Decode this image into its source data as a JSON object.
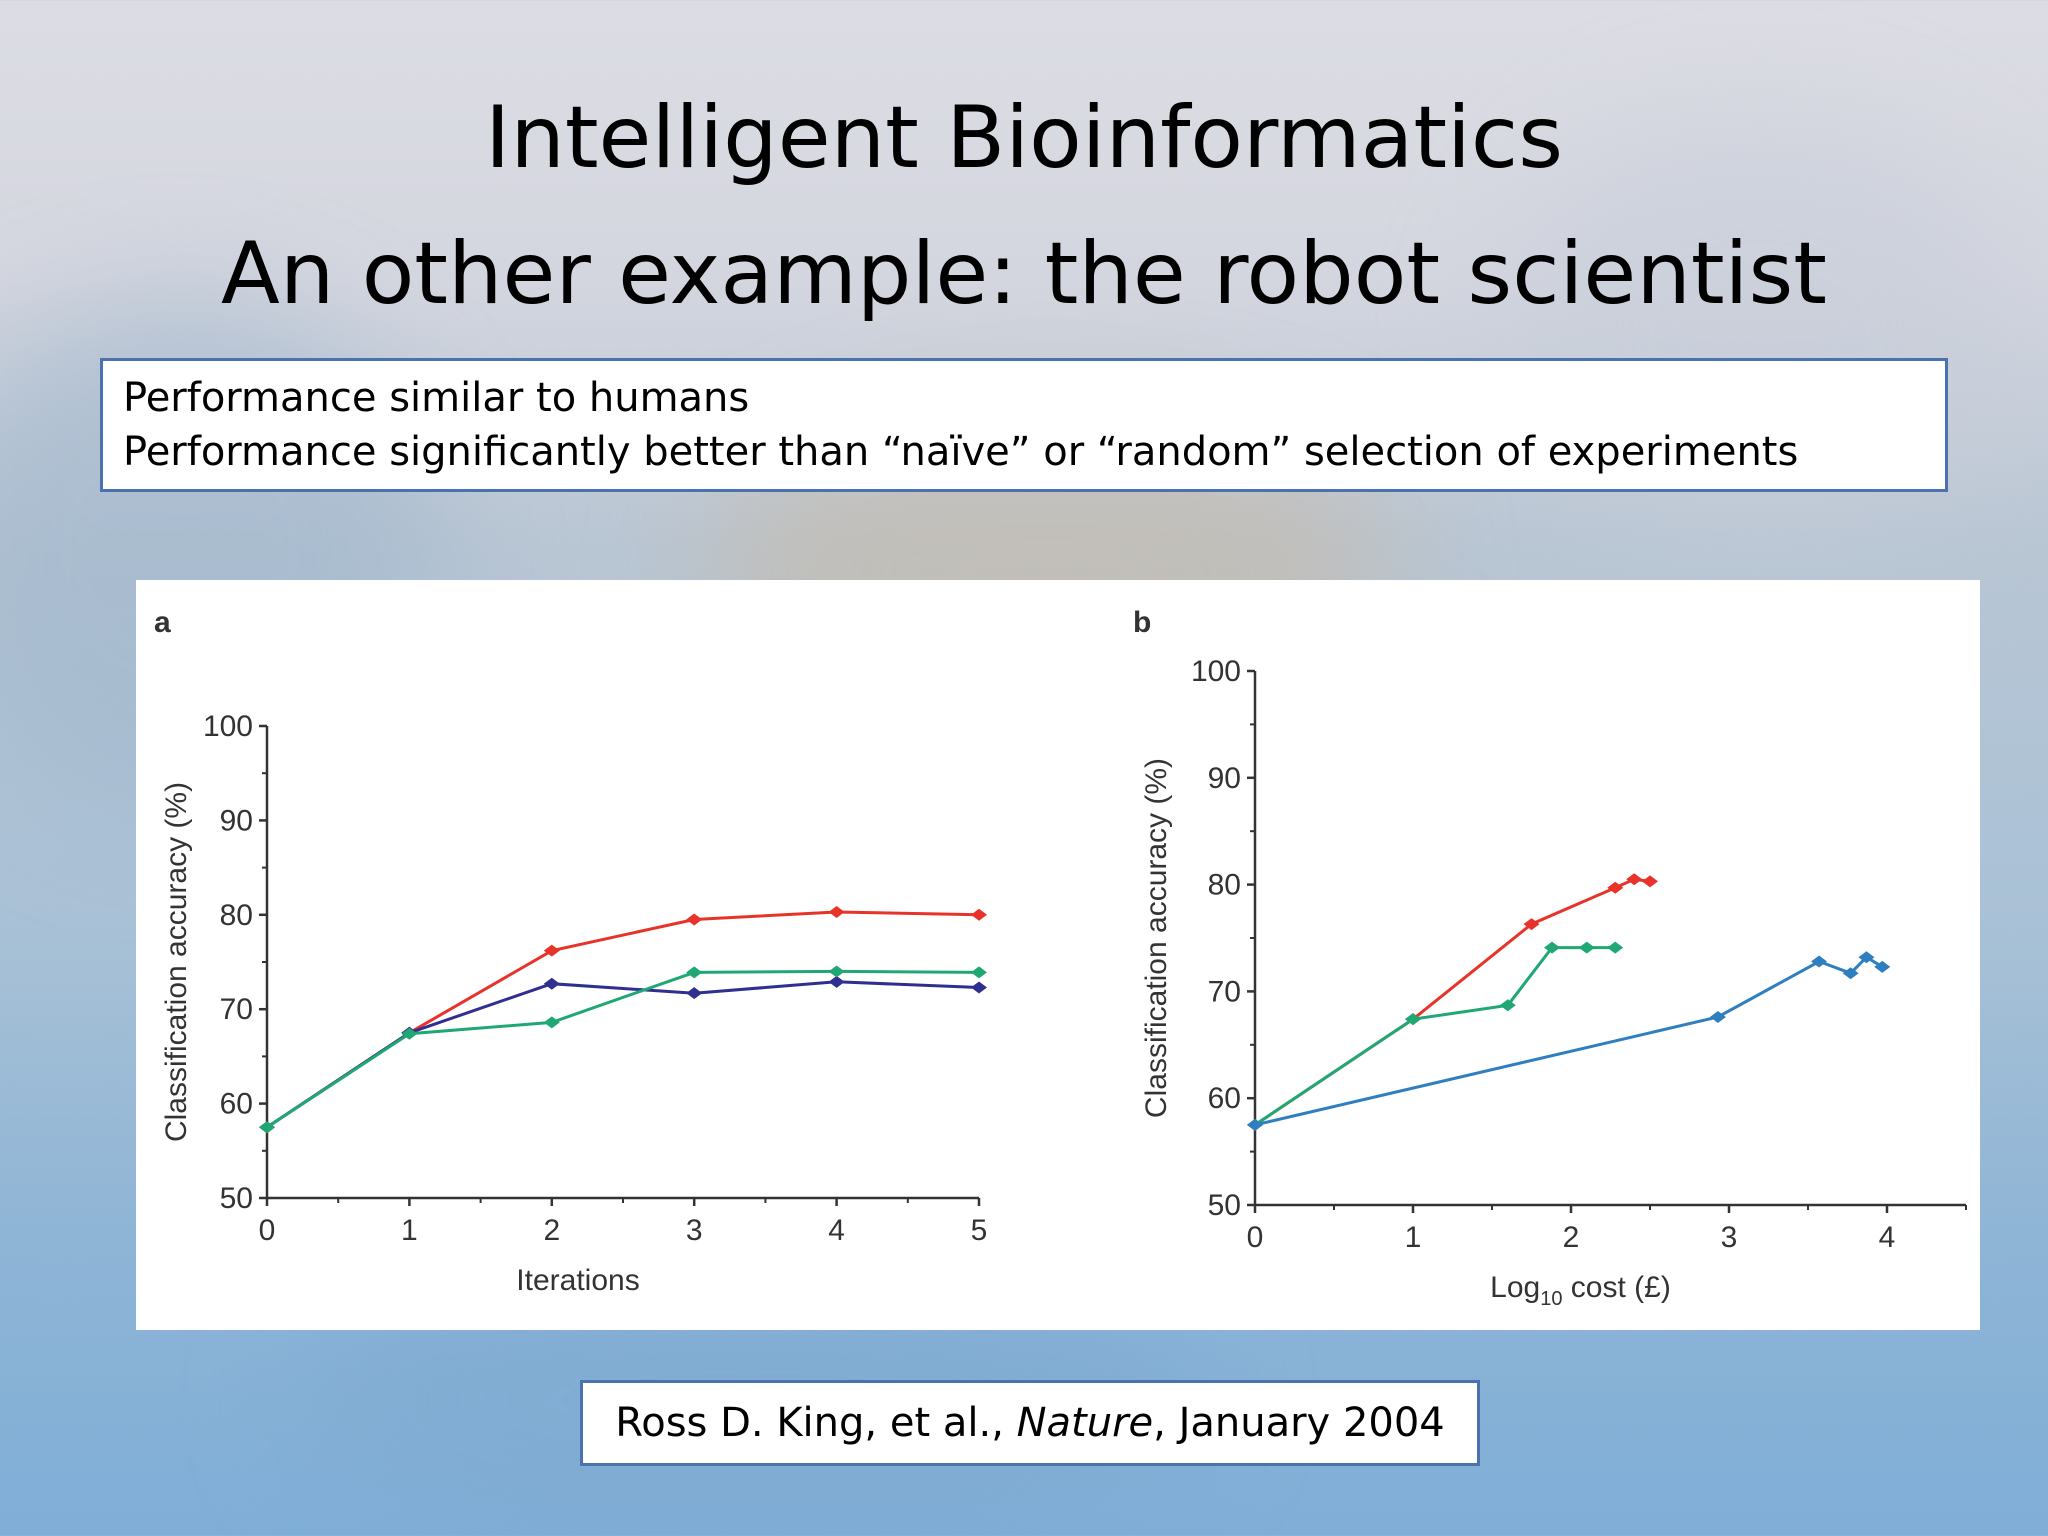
{
  "title": {
    "line1": "Intelligent Bioinformatics",
    "line2": "An other example: the robot scientist"
  },
  "info": {
    "line1": "Performance similar to humans",
    "line2": "Performance significantly better than “naïve” or “random” selection of experiments"
  },
  "citation": {
    "authors": "Ross D. King, et al., ",
    "journal": "Nature",
    "date": ", January 2004"
  },
  "chart_data": [
    {
      "type": "line",
      "panel_label": "a",
      "xlabel": "Iterations",
      "ylabel": "Classification accuracy (%)",
      "xlim": [
        0,
        5
      ],
      "ylim": [
        50,
        100
      ],
      "xticks": [
        0,
        1,
        2,
        3,
        4,
        5
      ],
      "yticks": [
        50,
        60,
        70,
        80,
        90,
        100
      ],
      "grid": false,
      "series": [
        {
          "color": "#e8332a",
          "x": [
            0,
            1,
            2,
            3,
            4,
            5
          ],
          "y": [
            57.5,
            67.5,
            76.2,
            79.5,
            80.3,
            80.0
          ]
        },
        {
          "color": "#2f2f8f",
          "x": [
            0,
            1,
            2,
            3,
            4,
            5
          ],
          "y": [
            57.5,
            67.5,
            72.7,
            71.7,
            72.9,
            72.3
          ]
        },
        {
          "color": "#1fa774",
          "x": [
            0,
            1,
            2,
            3,
            4,
            5
          ],
          "y": [
            57.5,
            67.4,
            68.6,
            73.9,
            74.0,
            73.9
          ]
        }
      ]
    },
    {
      "type": "line",
      "panel_label": "b",
      "xlabel_main": "Log",
      "xlabel_sub": "10",
      "xlabel_rest": " cost (£)",
      "ylabel": "Classification accuracy (%)",
      "xlim": [
        0,
        4.5
      ],
      "ylim": [
        50,
        100
      ],
      "xticks": [
        0,
        1,
        2,
        3,
        4
      ],
      "yticks": [
        50,
        60,
        70,
        80,
        90,
        100
      ],
      "grid": false,
      "series": [
        {
          "color": "#e8332a",
          "x": [
            0,
            1.0,
            1.75,
            2.28,
            2.4,
            2.5
          ],
          "y": [
            57.5,
            67.4,
            76.3,
            79.7,
            80.5,
            80.3
          ]
        },
        {
          "color": "#1fa774",
          "x": [
            0,
            1.0,
            1.6,
            1.88,
            2.1,
            2.28
          ],
          "y": [
            57.5,
            67.4,
            68.7,
            74.1,
            74.1,
            74.1
          ]
        },
        {
          "color": "#2f7fc0",
          "x": [
            0,
            2.93,
            3.57,
            3.77,
            3.87,
            3.97
          ],
          "y": [
            57.5,
            67.6,
            72.8,
            71.7,
            73.2,
            72.3
          ]
        }
      ]
    }
  ]
}
